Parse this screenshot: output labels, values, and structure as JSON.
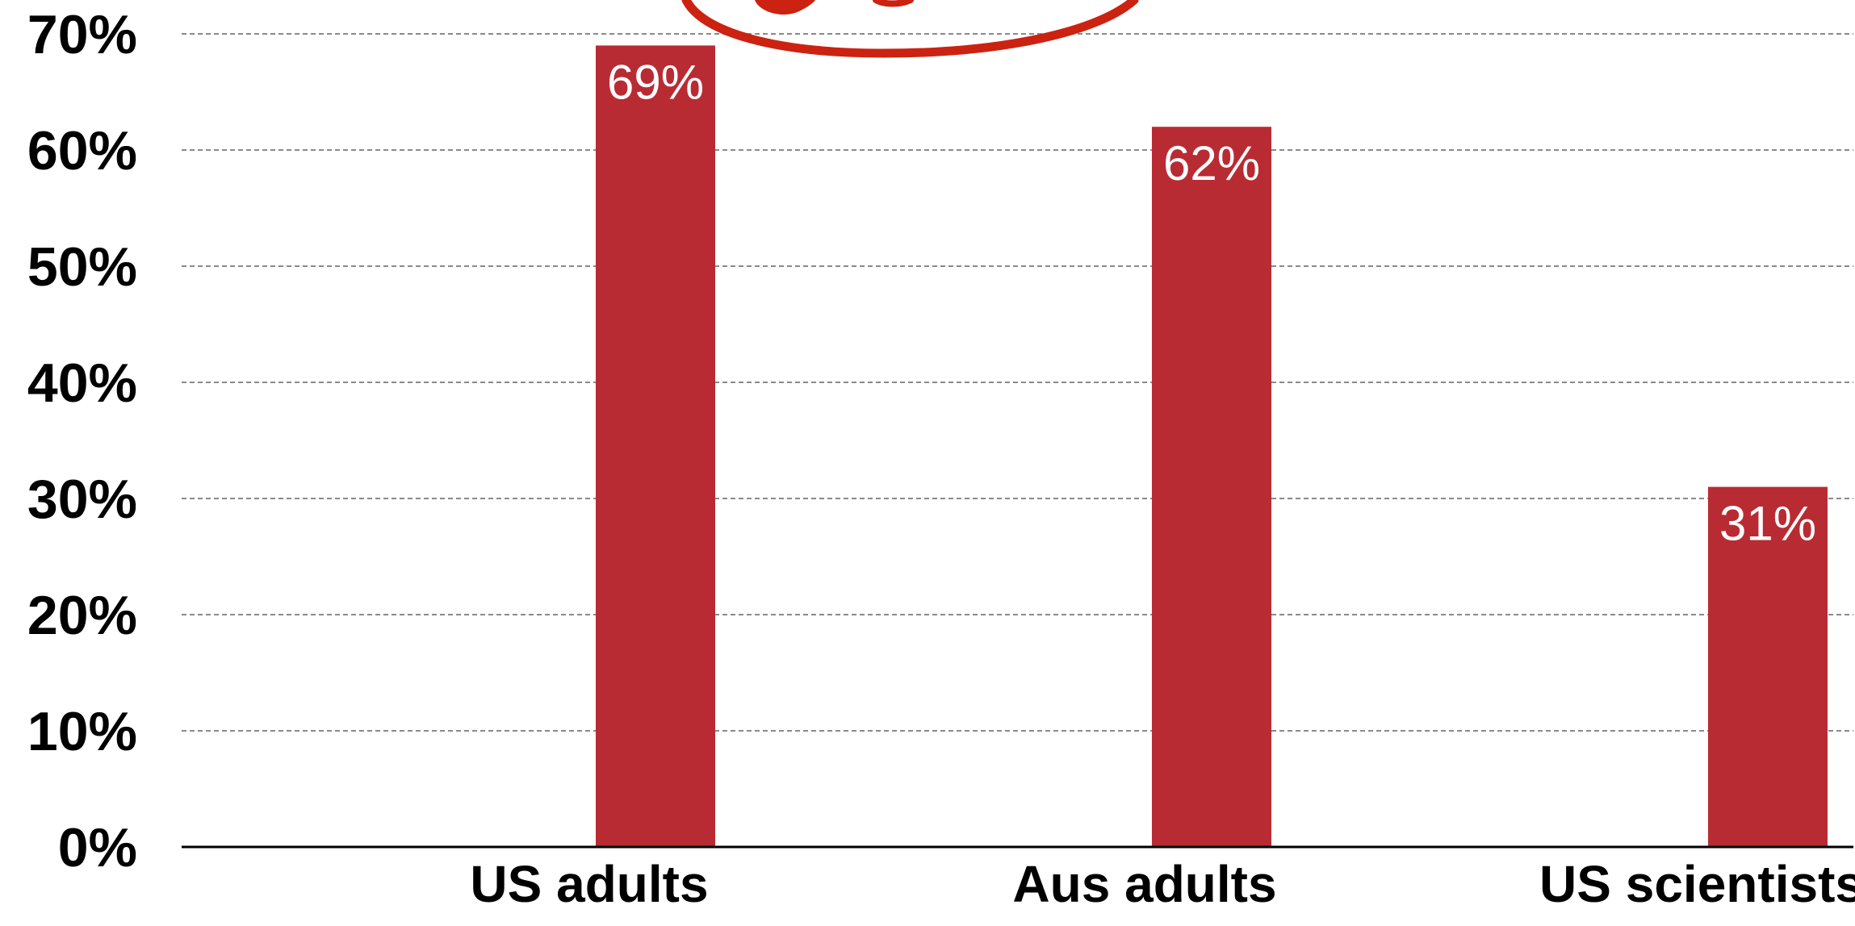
{
  "chart_data": {
    "type": "bar",
    "categories": [
      "US adults",
      "Aus adults",
      "US scientists"
    ],
    "values": [
      69,
      62,
      31
    ],
    "data_labels": [
      "69%",
      "62%",
      "31%"
    ],
    "y_ticks": [
      "0%",
      "10%",
      "20%",
      "30%",
      "40%",
      "50%",
      "60%",
      "70%"
    ],
    "ylim": [
      0,
      70
    ],
    "grid": true,
    "title": "",
    "xlabel": "",
    "ylabel": "",
    "bar_color": "#b92b33",
    "annotation_color": "#cc2211"
  }
}
